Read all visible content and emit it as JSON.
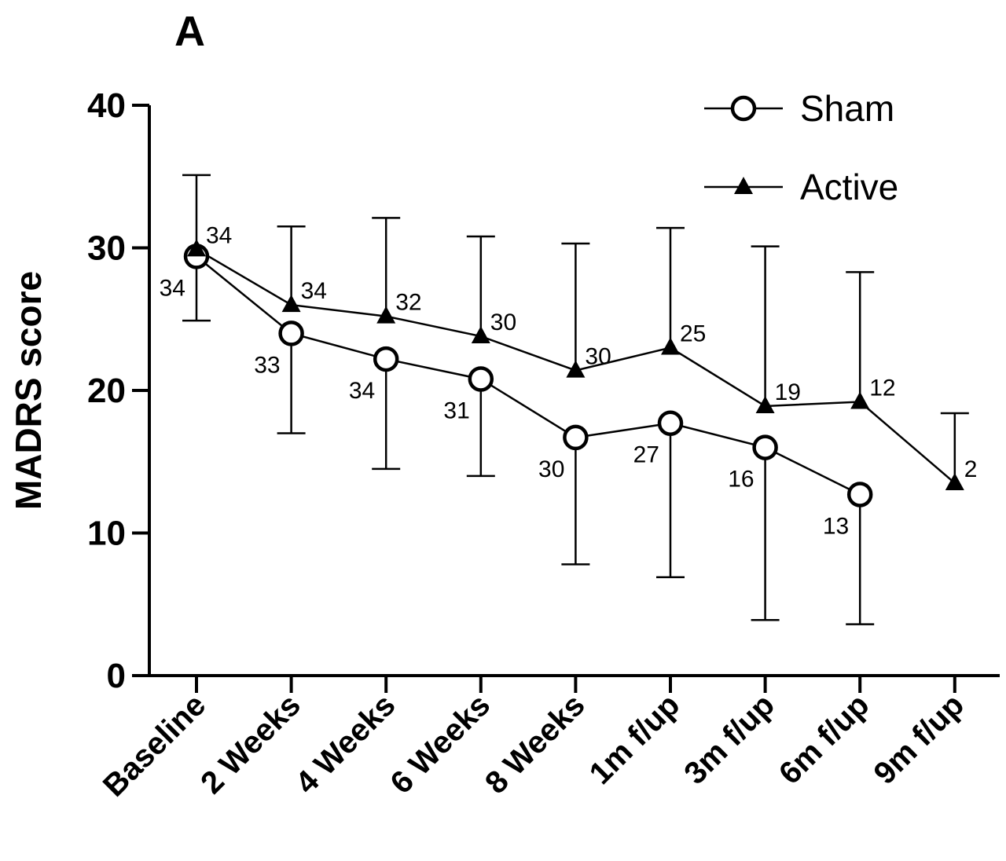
{
  "panel_label": "A",
  "chart_data": {
    "type": "line",
    "title": "",
    "xlabel": "",
    "ylabel": "MADRS score",
    "ylim": [
      0,
      40
    ],
    "yticks": [
      "0",
      "10",
      "20",
      "30",
      "40"
    ],
    "ytick_values": [
      0,
      10,
      20,
      30,
      40
    ],
    "categories": [
      "Baseline",
      "2 Weeks",
      "4 Weeks",
      "6 Weeks",
      "8 Weeks",
      "1m f/up",
      "3m f/up",
      "6m f/up",
      "9m f/up"
    ],
    "grid": false,
    "legend_position": "top-right",
    "series": [
      {
        "name": "Sham",
        "marker": "open-circle",
        "color": "#000000",
        "values": [
          29.4,
          24.0,
          22.2,
          20.8,
          16.7,
          17.7,
          16.0,
          12.7,
          null
        ],
        "n_labels": [
          "34",
          "33",
          "34",
          "31",
          "30",
          "27",
          "16",
          "13",
          null
        ],
        "error_low": [
          null,
          17.0,
          14.5,
          14.0,
          7.8,
          6.9,
          3.9,
          3.6,
          null
        ],
        "error_high": [
          null,
          null,
          null,
          null,
          null,
          null,
          null,
          null,
          null
        ]
      },
      {
        "name": "Active",
        "marker": "filled-triangle",
        "color": "#000000",
        "values": [
          29.9,
          26.0,
          25.2,
          23.8,
          21.4,
          23.0,
          18.9,
          19.2,
          13.5
        ],
        "n_labels": [
          "34",
          "34",
          "32",
          "30",
          "30",
          "25",
          "19",
          "12",
          "2"
        ],
        "error_low": [
          null,
          null,
          null,
          null,
          null,
          null,
          null,
          null,
          null
        ],
        "error_high": [
          35.1,
          31.5,
          32.1,
          30.8,
          30.3,
          31.4,
          30.1,
          28.3,
          18.4
        ]
      }
    ],
    "baseline_error": [
      24.9,
      35.1
    ]
  }
}
